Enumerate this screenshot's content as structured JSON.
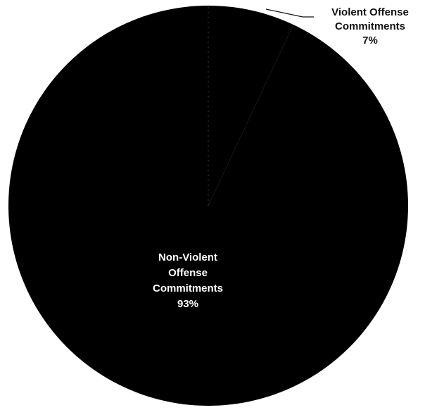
{
  "chart_data": {
    "type": "pie",
    "title": "",
    "slices": [
      {
        "label_lines": [
          "Violent Offense",
          "Commitments",
          "7%"
        ],
        "value": 7,
        "color": "#000000"
      },
      {
        "label_lines": [
          "Non-Violent",
          "Offense",
          "Commitments",
          "93%"
        ],
        "value": 93,
        "color": "#000000"
      }
    ],
    "label_colors": {
      "outside": "#111111",
      "inside": "#ffffff"
    },
    "legend": "none",
    "grid": false
  }
}
